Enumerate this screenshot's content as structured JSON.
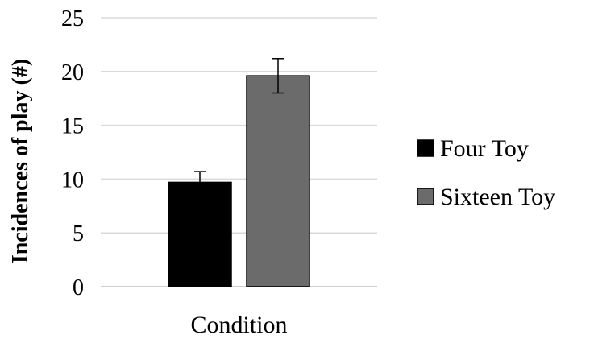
{
  "chart_data": {
    "type": "bar",
    "categories": [
      "Condition"
    ],
    "series": [
      {
        "name": "Four Toy",
        "values": [
          9.7
        ],
        "error": [
          1.0
        ],
        "color": "#000000"
      },
      {
        "name": "Sixteen Toy",
        "values": [
          19.6
        ],
        "error": [
          1.6
        ],
        "color": "#6b6b6b"
      }
    ],
    "xlabel": "",
    "ylabel": "Incidences of play (#)",
    "ylim": [
      0,
      25
    ],
    "yticks": [
      0,
      5,
      10,
      15,
      20,
      25
    ],
    "grid": true,
    "legend_position": "right"
  }
}
